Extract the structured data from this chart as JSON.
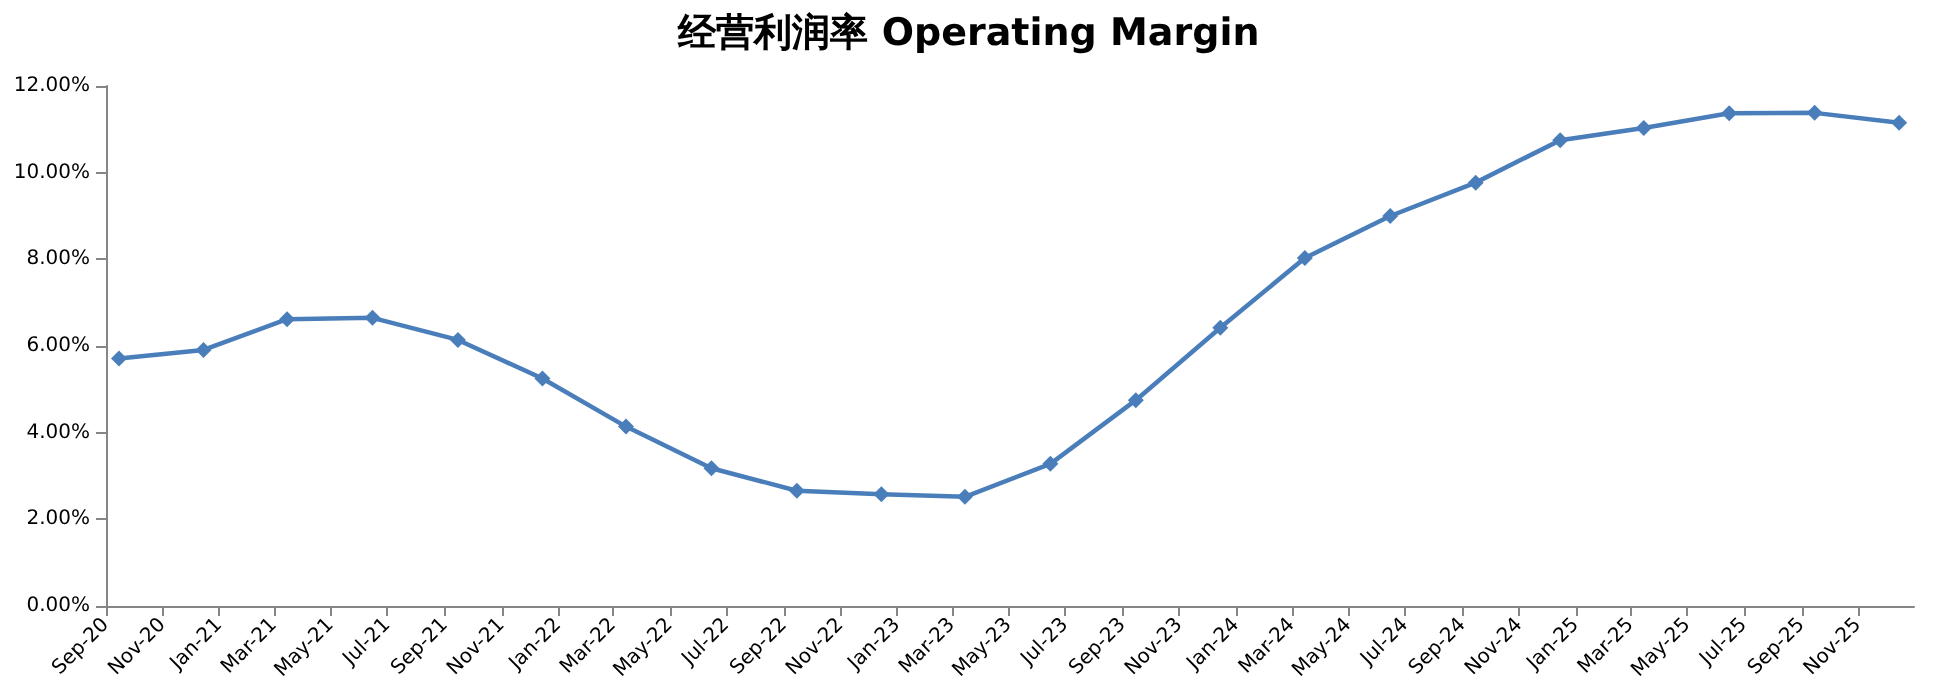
{
  "chart_data": {
    "type": "line",
    "title": "经营利润率 Operating Margin",
    "x": [
      "2020-09-15",
      "2020-12-15",
      "2021-03-15",
      "2021-06-15",
      "2021-09-15",
      "2021-12-15",
      "2022-03-15",
      "2022-06-15",
      "2022-09-15",
      "2022-12-15",
      "2023-03-15",
      "2023-06-15",
      "2023-09-15",
      "2023-12-15",
      "2024-03-15",
      "2024-06-15",
      "2024-09-15",
      "2024-12-15",
      "2025-03-15",
      "2025-06-15",
      "2025-09-15",
      "2025-12-15"
    ],
    "series": [
      {
        "color": "#4a7ebb",
        "values": [
          5.71,
          5.91,
          6.62,
          6.65,
          6.14,
          5.25,
          4.14,
          3.18,
          2.66,
          2.58,
          2.52,
          3.28,
          4.75,
          6.42,
          8.03,
          9.0,
          9.77,
          10.75,
          11.03,
          11.37,
          11.38,
          11.15
        ]
      }
    ],
    "xlim": [
      "2020-09-01",
      "2025-12-31"
    ],
    "xticks": [
      {
        "value": "2020-09",
        "label": "Sep-20"
      },
      {
        "value": "2020-11",
        "label": "Nov-20"
      },
      {
        "value": "2021-01",
        "label": "Jan-21"
      },
      {
        "value": "2021-03",
        "label": "Mar-21"
      },
      {
        "value": "2021-05",
        "label": "May-21"
      },
      {
        "value": "2021-07",
        "label": "Jul-21"
      },
      {
        "value": "2021-09",
        "label": "Sep-21"
      },
      {
        "value": "2021-11",
        "label": "Nov-21"
      },
      {
        "value": "2022-01",
        "label": "Jan-22"
      },
      {
        "value": "2022-03",
        "label": "Mar-22"
      },
      {
        "value": "2022-05",
        "label": "May-22"
      },
      {
        "value": "2022-07",
        "label": "Jul-22"
      },
      {
        "value": "2022-09",
        "label": "Sep-22"
      },
      {
        "value": "2022-11",
        "label": "Nov-22"
      },
      {
        "value": "2023-01",
        "label": "Jan-23"
      },
      {
        "value": "2023-03",
        "label": "Mar-23"
      },
      {
        "value": "2023-05",
        "label": "May-23"
      },
      {
        "value": "2023-07",
        "label": "Jul-23"
      },
      {
        "value": "2023-09",
        "label": "Sep-23"
      },
      {
        "value": "2023-11",
        "label": "Nov-23"
      },
      {
        "value": "2024-01",
        "label": "Jan-24"
      },
      {
        "value": "2024-03",
        "label": "Mar-24"
      },
      {
        "value": "2024-05",
        "label": "May-24"
      },
      {
        "value": "2024-07",
        "label": "Jul-24"
      },
      {
        "value": "2024-09",
        "label": "Sep-24"
      },
      {
        "value": "2024-11",
        "label": "Nov-24"
      },
      {
        "value": "2025-01",
        "label": "Jan-25"
      },
      {
        "value": "2025-03",
        "label": "Mar-25"
      },
      {
        "value": "2025-05",
        "label": "May-25"
      },
      {
        "value": "2025-07",
        "label": "Jul-25"
      },
      {
        "value": "2025-09",
        "label": "Sep-25"
      },
      {
        "value": "2025-11",
        "label": "Nov-25"
      }
    ],
    "ylim": [
      0,
      12
    ],
    "yticks": [
      {
        "value": 0,
        "label": "0.00%"
      },
      {
        "value": 2,
        "label": "2.00%"
      },
      {
        "value": 4,
        "label": "4.00%"
      },
      {
        "value": 6,
        "label": "6.00%"
      },
      {
        "value": 8,
        "label": "8.00%"
      },
      {
        "value": 10,
        "label": "10.00%"
      },
      {
        "value": 12,
        "label": "12.00%"
      }
    ],
    "grid": false,
    "marker": "diamond",
    "line_style": "solid"
  }
}
